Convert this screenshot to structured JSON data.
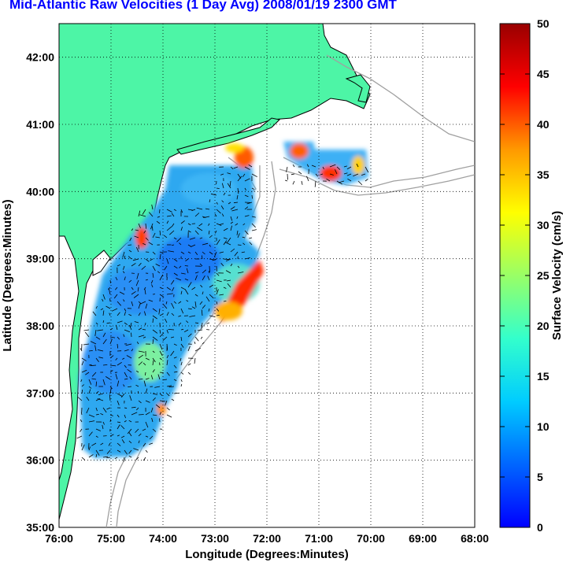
{
  "title": "Mid-Atlantic Raw Velocities (1 Day Avg) 2008/01/19 2300 GMT",
  "xlabel": "Longitude (Degrees:Minutes)",
  "ylabel": "Latitude (Degrees:Minutes)",
  "x_ticks": [
    "76:00",
    "75:00",
    "74:00",
    "73:00",
    "72:00",
    "71:00",
    "70:00",
    "69:00",
    "68:00"
  ],
  "y_ticks": [
    "42:00",
    "41:00",
    "40:00",
    "39:00",
    "38:00",
    "37:00",
    "36:00",
    "35:00"
  ],
  "colorbar": {
    "label": "Surface Velocity (cm/s)",
    "ticks": [
      "50",
      "45",
      "40",
      "35",
      "30",
      "25",
      "20",
      "15",
      "10",
      "5",
      "0"
    ],
    "range": [
      0,
      50
    ],
    "colormap": "jet"
  },
  "colors": {
    "land": "#4df5a6",
    "coast": "#000000",
    "bathymetry": "#a0a0a0",
    "grid": "#000000",
    "title": "#0000ff"
  },
  "map_extent": {
    "lon": [
      -76,
      -68
    ],
    "lat": [
      35,
      42.5
    ]
  }
}
